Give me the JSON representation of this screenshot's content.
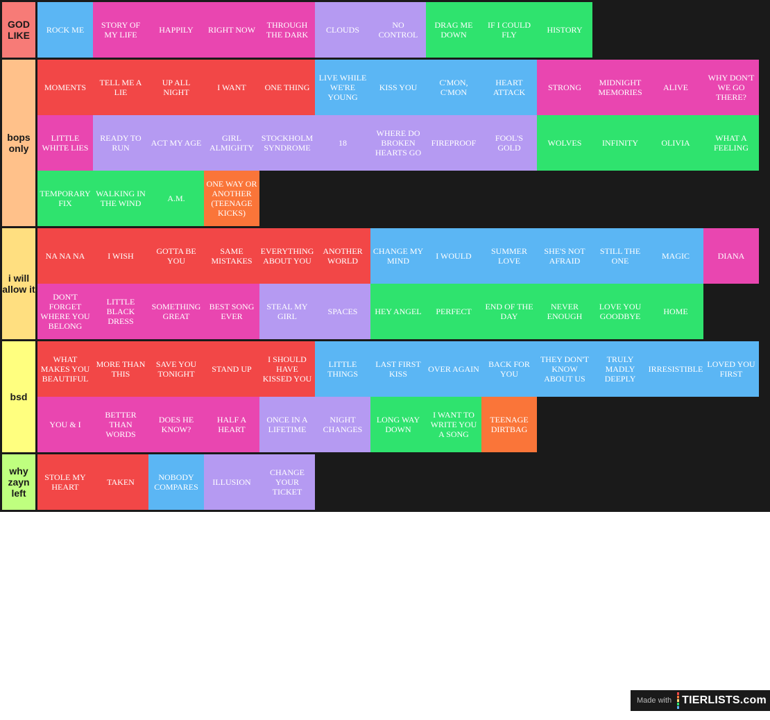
{
  "colors": {
    "red": "#f24747",
    "pink": "#e946b0",
    "blue": "#5bb6f4",
    "purple": "#b59af2",
    "green": "#2fe36e",
    "orange": "#fa7539",
    "board": "#1a1a1a"
  },
  "tiers": [
    {
      "label": "GOD LIKE",
      "color": "#f77b77",
      "items": [
        {
          "text": "ROCK ME",
          "color": "blue"
        },
        {
          "text": "STORY OF MY LIFE",
          "color": "pink"
        },
        {
          "text": "HAPPILY",
          "color": "pink"
        },
        {
          "text": "RIGHT NOW",
          "color": "pink"
        },
        {
          "text": "THROUGH THE DARK",
          "color": "pink"
        },
        {
          "text": "CLOUDS",
          "color": "purple"
        },
        {
          "text": "NO CONTROL",
          "color": "purple"
        },
        {
          "text": "DRAG ME DOWN",
          "color": "green"
        },
        {
          "text": "IF I COULD FLY",
          "color": "green"
        },
        {
          "text": "HISTORY",
          "color": "green"
        }
      ]
    },
    {
      "label": "bops only",
      "color": "#ffc18a",
      "items": [
        {
          "text": "MOMENTS",
          "color": "red"
        },
        {
          "text": "TELL ME A LIE",
          "color": "red"
        },
        {
          "text": "UP ALL NIGHT",
          "color": "red"
        },
        {
          "text": "I WANT",
          "color": "red"
        },
        {
          "text": "ONE THING",
          "color": "red"
        },
        {
          "text": "LIVE WHILE WE'RE YOUNG",
          "color": "blue"
        },
        {
          "text": "KISS YOU",
          "color": "blue"
        },
        {
          "text": "C'MON, C'MON",
          "color": "blue"
        },
        {
          "text": "HEART ATTACK",
          "color": "blue"
        },
        {
          "text": "STRONG",
          "color": "pink"
        },
        {
          "text": "MIDNIGHT MEMORIES",
          "color": "pink"
        },
        {
          "text": "ALIVE",
          "color": "pink"
        },
        {
          "text": "WHY DON'T WE GO THERE?",
          "color": "pink"
        },
        {
          "text": "LITTLE WHITE LIES",
          "color": "pink"
        },
        {
          "text": "READY TO RUN",
          "color": "purple"
        },
        {
          "text": "ACT MY AGE",
          "color": "purple"
        },
        {
          "text": "GIRL ALMIGHTY",
          "color": "purple"
        },
        {
          "text": "STOCKHOLM SYNDROME",
          "color": "purple"
        },
        {
          "text": "18",
          "color": "purple"
        },
        {
          "text": "WHERE DO BROKEN HEARTS GO",
          "color": "purple"
        },
        {
          "text": "FIREPROOF",
          "color": "purple"
        },
        {
          "text": "FOOL'S GOLD",
          "color": "purple"
        },
        {
          "text": "WOLVES",
          "color": "green"
        },
        {
          "text": "INFINITY",
          "color": "green"
        },
        {
          "text": "OLIVIA",
          "color": "green"
        },
        {
          "text": "WHAT A FEELING",
          "color": "green"
        },
        {
          "text": "TEMPORARY FIX",
          "color": "green"
        },
        {
          "text": "WALKING IN THE WIND",
          "color": "green"
        },
        {
          "text": "A.M.",
          "color": "green"
        },
        {
          "text": "ONE WAY OR ANOTHER (TEENAGE KICKS)",
          "color": "orange"
        }
      ]
    },
    {
      "label": "i will allow it",
      "color": "#ffdf80",
      "items": [
        {
          "text": "NA NA NA",
          "color": "red"
        },
        {
          "text": "I WISH",
          "color": "red"
        },
        {
          "text": "GOTTA BE YOU",
          "color": "red"
        },
        {
          "text": "SAME MISTAKES",
          "color": "red"
        },
        {
          "text": "EVERYTHING ABOUT YOU",
          "color": "red"
        },
        {
          "text": "ANOTHER WORLD",
          "color": "red"
        },
        {
          "text": "CHANGE MY MIND",
          "color": "blue"
        },
        {
          "text": "I WOULD",
          "color": "blue"
        },
        {
          "text": "SUMMER LOVE",
          "color": "blue"
        },
        {
          "text": "SHE'S NOT AFRAID",
          "color": "blue"
        },
        {
          "text": "STILL THE ONE",
          "color": "blue"
        },
        {
          "text": "MAGIC",
          "color": "blue"
        },
        {
          "text": "DIANA",
          "color": "pink"
        },
        {
          "text": "DON'T FORGET WHERE YOU BELONG",
          "color": "pink"
        },
        {
          "text": "LITTLE BLACK DRESS",
          "color": "pink"
        },
        {
          "text": "SOMETHING GREAT",
          "color": "pink"
        },
        {
          "text": "BEST SONG EVER",
          "color": "pink"
        },
        {
          "text": "STEAL MY GIRL",
          "color": "purple"
        },
        {
          "text": "SPACES",
          "color": "purple"
        },
        {
          "text": "HEY ANGEL",
          "color": "green"
        },
        {
          "text": "PERFECT",
          "color": "green"
        },
        {
          "text": "END OF THE DAY",
          "color": "green"
        },
        {
          "text": "NEVER ENOUGH",
          "color": "green"
        },
        {
          "text": "LOVE YOU GOODBYE",
          "color": "green"
        },
        {
          "text": "HOME",
          "color": "green"
        }
      ]
    },
    {
      "label": "bsd",
      "color": "#ffff7f",
      "items": [
        {
          "text": "WHAT MAKES YOU BEAUTIFUL",
          "color": "red"
        },
        {
          "text": "MORE THAN THIS",
          "color": "red"
        },
        {
          "text": "SAVE YOU TONIGHT",
          "color": "red"
        },
        {
          "text": "STAND UP",
          "color": "red"
        },
        {
          "text": "I SHOULD HAVE KISSED YOU",
          "color": "red"
        },
        {
          "text": "LITTLE THINGS",
          "color": "blue"
        },
        {
          "text": "LAST FIRST KISS",
          "color": "blue"
        },
        {
          "text": "OVER AGAIN",
          "color": "blue"
        },
        {
          "text": "BACK FOR YOU",
          "color": "blue"
        },
        {
          "text": "THEY DON'T KNOW ABOUT US",
          "color": "blue"
        },
        {
          "text": "TRULY MADLY DEEPLY",
          "color": "blue"
        },
        {
          "text": "IRRESISTIBLE",
          "color": "blue"
        },
        {
          "text": "LOVED YOU FIRST",
          "color": "blue"
        },
        {
          "text": "YOU & I",
          "color": "pink"
        },
        {
          "text": "BETTER THAN WORDS",
          "color": "pink"
        },
        {
          "text": "DOES HE KNOW?",
          "color": "pink"
        },
        {
          "text": "HALF A HEART",
          "color": "pink"
        },
        {
          "text": "ONCE IN A LIFETIME",
          "color": "purple"
        },
        {
          "text": "NIGHT CHANGES",
          "color": "purple"
        },
        {
          "text": "LONG WAY DOWN",
          "color": "green"
        },
        {
          "text": "I WANT TO WRITE YOU A SONG",
          "color": "green"
        },
        {
          "text": "TEENAGE DIRTBAG",
          "color": "orange"
        }
      ]
    },
    {
      "label": "why zayn left",
      "color": "#bfff7f",
      "items": [
        {
          "text": "STOLE MY HEART",
          "color": "red"
        },
        {
          "text": "TAKEN",
          "color": "red"
        },
        {
          "text": "NOBODY COMPARES",
          "color": "blue"
        },
        {
          "text": "ILLUSION",
          "color": "purple"
        },
        {
          "text": "CHANGE YOUR TICKET",
          "color": "purple"
        }
      ]
    }
  ],
  "badge": {
    "made_with": "Made with",
    "brand": "TIERLISTS.com",
    "bar_colors": [
      "#f24747",
      "#fa7539",
      "#ffdf80",
      "#2fe36e",
      "#5bb6f4"
    ]
  }
}
